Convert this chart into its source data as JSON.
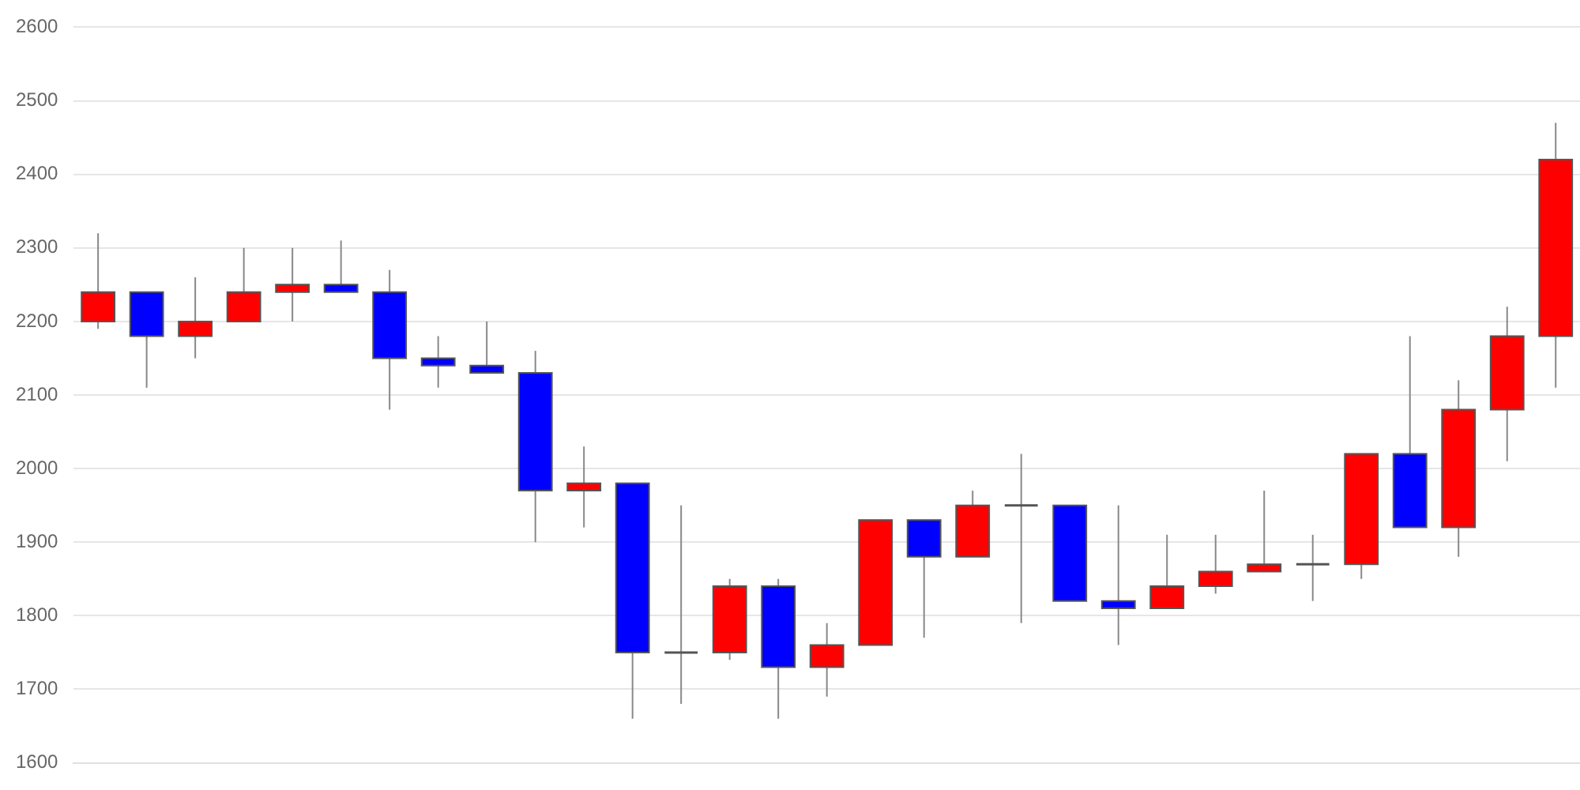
{
  "chart_data": {
    "type": "candlestick",
    "categories": [
      null,
      null,
      null,
      null,
      null,
      null,
      null,
      null,
      null,
      null,
      null,
      null,
      null,
      null,
      null,
      null,
      null,
      null,
      null,
      null,
      null,
      null,
      null,
      null,
      null,
      null,
      null,
      null,
      null,
      null,
      null
    ],
    "ohlc": [
      [
        2200,
        2320,
        2190,
        2240
      ],
      [
        2240,
        2240,
        2110,
        2180
      ],
      [
        2180,
        2260,
        2150,
        2200
      ],
      [
        2200,
        2300,
        2200,
        2240
      ],
      [
        2240,
        2300,
        2200,
        2250
      ],
      [
        2250,
        2310,
        2240,
        2240
      ],
      [
        2240,
        2270,
        2080,
        2150
      ],
      [
        2150,
        2180,
        2110,
        2140
      ],
      [
        2140,
        2200,
        2130,
        2130
      ],
      [
        2130,
        2160,
        1900,
        1970
      ],
      [
        1970,
        2030,
        1920,
        1980
      ],
      [
        1980,
        1980,
        1660,
        1750
      ],
      [
        1750,
        1950,
        1680,
        1750
      ],
      [
        1750,
        1850,
        1740,
        1840
      ],
      [
        1840,
        1850,
        1660,
        1730
      ],
      [
        1730,
        1790,
        1690,
        1760
      ],
      [
        1760,
        1930,
        1760,
        1930
      ],
      [
        1930,
        1930,
        1770,
        1880
      ],
      [
        1880,
        1970,
        1880,
        1950
      ],
      [
        1950,
        2020,
        1790,
        1950
      ],
      [
        1950,
        1950,
        1820,
        1820
      ],
      [
        1820,
        1950,
        1760,
        1810
      ],
      [
        1810,
        1910,
        1810,
        1840
      ],
      [
        1840,
        1910,
        1830,
        1860
      ],
      [
        1860,
        1970,
        1860,
        1870
      ],
      [
        1870,
        1910,
        1820,
        1870
      ],
      [
        1870,
        2020,
        1850,
        2020
      ],
      [
        2020,
        2180,
        1920,
        1920
      ],
      [
        1920,
        2120,
        1880,
        2080
      ],
      [
        2080,
        2220,
        2010,
        2180
      ],
      [
        2180,
        2470,
        2110,
        2420
      ]
    ],
    "colors": [
      "#ff0000",
      "#0000ff",
      "#ff0000",
      "#ff0000",
      "#ff0000",
      "#0000ff",
      "#0000ff",
      "#0000ff",
      "#0000ff",
      "#0000ff",
      "#ff0000",
      "#0000ff",
      "#555555",
      "#ff0000",
      "#0000ff",
      "#ff0000",
      "#ff0000",
      "#0000ff",
      "#ff0000",
      "#555555",
      "#0000ff",
      "#0000ff",
      "#ff0000",
      "#ff0000",
      "#ff0000",
      "#555555",
      "#ff0000",
      "#0000ff",
      "#ff0000",
      "#ff0000",
      "#ff0000"
    ],
    "ylim": [
      1600,
      2600
    ],
    "yticks": [
      1600,
      1700,
      1800,
      1900,
      2000,
      2100,
      2200,
      2300,
      2400,
      2500,
      2600
    ],
    "grid": "y"
  }
}
